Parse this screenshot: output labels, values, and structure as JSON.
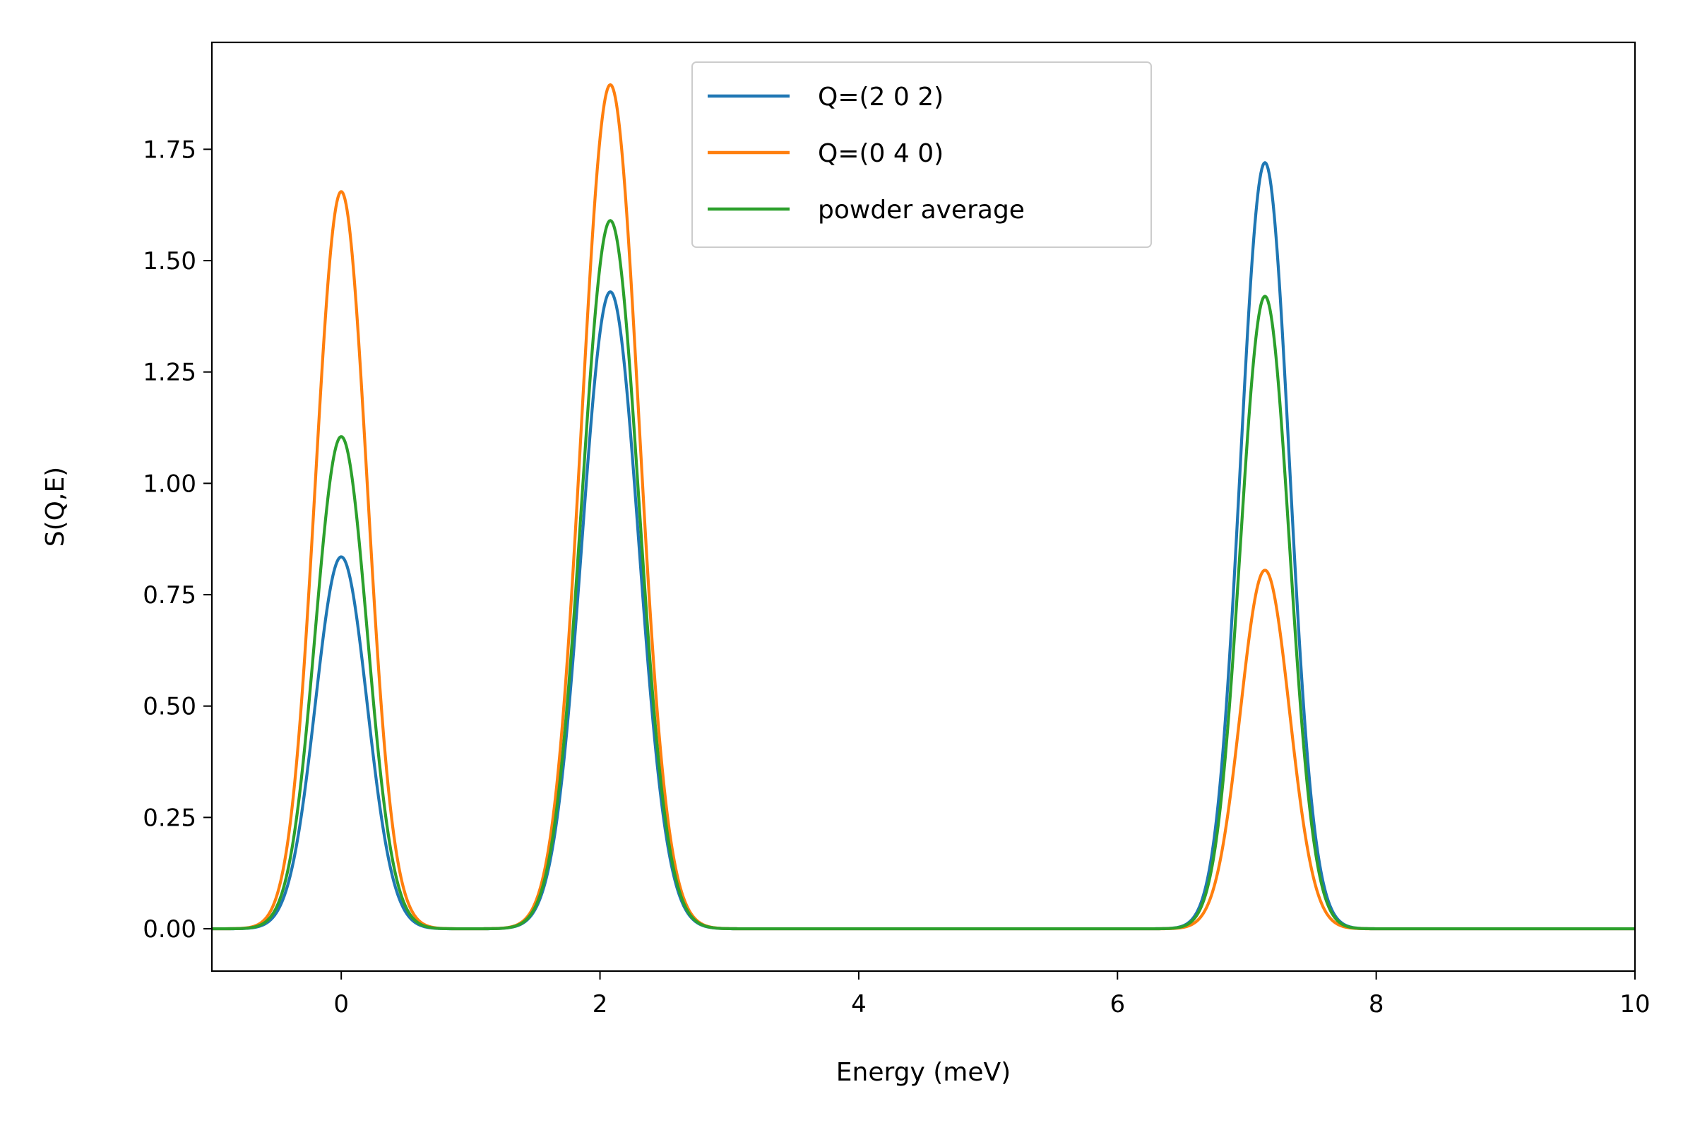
{
  "chart_data": {
    "type": "line",
    "xlabel": "Energy (meV)",
    "ylabel": "S(Q,E)",
    "xlim": [
      -1,
      10
    ],
    "ylim": [
      -0.095,
      1.99
    ],
    "xticks": [
      0,
      2,
      4,
      6,
      8,
      10
    ],
    "yticks": [
      0.0,
      0.25,
      0.5,
      0.75,
      1.0,
      1.25,
      1.5,
      1.75
    ],
    "ytick_labels": [
      "0.00",
      "0.25",
      "0.50",
      "0.75",
      "1.00",
      "1.25",
      "1.50",
      "1.75"
    ],
    "grid": false,
    "legend_position": "top-center",
    "peaks": [
      {
        "center": 0.0,
        "sigma": 0.2
      },
      {
        "center": 2.08,
        "sigma": 0.22
      },
      {
        "center": 7.14,
        "sigma": 0.19
      }
    ],
    "series": [
      {
        "name": "Q=(2 0 2)",
        "color": "#1f77b4",
        "amplitudes": [
          0.835,
          1.43,
          1.72
        ]
      },
      {
        "name": "Q=(0 4 0)",
        "color": "#ff7f0e",
        "amplitudes": [
          1.655,
          1.895,
          0.805
        ]
      },
      {
        "name": "powder average",
        "color": "#2ca02c",
        "amplitudes": [
          1.105,
          1.59,
          1.42
        ]
      }
    ]
  }
}
